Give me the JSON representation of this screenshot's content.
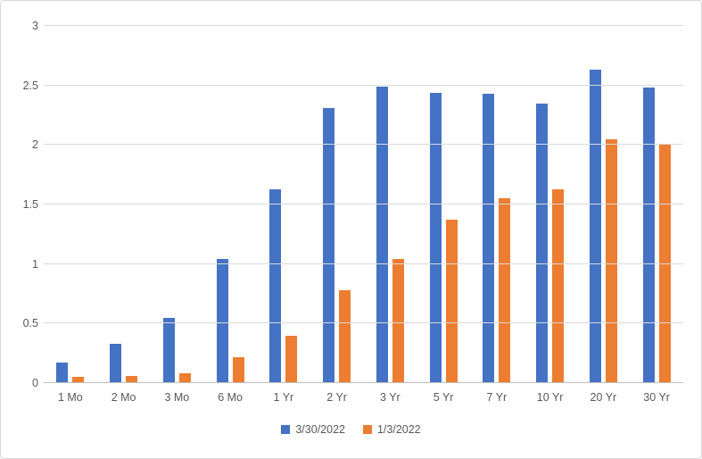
{
  "chart_data": {
    "type": "bar",
    "title": "",
    "xlabel": "",
    "ylabel": "",
    "categories": [
      "1 Mo",
      "2 Mo",
      "3 Mo",
      "6 Mo",
      "1 Yr",
      "2 Yr",
      "3 Yr",
      "5 Yr",
      "7 Yr",
      "10 Yr",
      "20 Yr",
      "30 Yr"
    ],
    "series": [
      {
        "name": "3/30/2022",
        "color": "#4472C4",
        "values": [
          0.17,
          0.33,
          0.55,
          1.04,
          1.63,
          2.31,
          2.49,
          2.44,
          2.43,
          2.35,
          2.63,
          2.48
        ]
      },
      {
        "name": "1/3/2022",
        "color": "#ED7D31",
        "values": [
          0.05,
          0.06,
          0.08,
          0.22,
          0.4,
          0.78,
          1.04,
          1.37,
          1.55,
          1.63,
          2.05,
          2.01
        ]
      }
    ],
    "ylim": [
      0,
      3
    ],
    "ytick_step": 0.5,
    "ytick_labels": [
      "0",
      "0.5",
      "1",
      "1.5",
      "2",
      "2.5",
      "3"
    ],
    "grid": true,
    "legend_position": "bottom"
  },
  "colors": {
    "gridline": "#D9D9D9",
    "axis_line": "#BFBFBF",
    "tick_text": "#595959",
    "background": "#FFFFFF",
    "frame_border": "#D9D9D9"
  }
}
